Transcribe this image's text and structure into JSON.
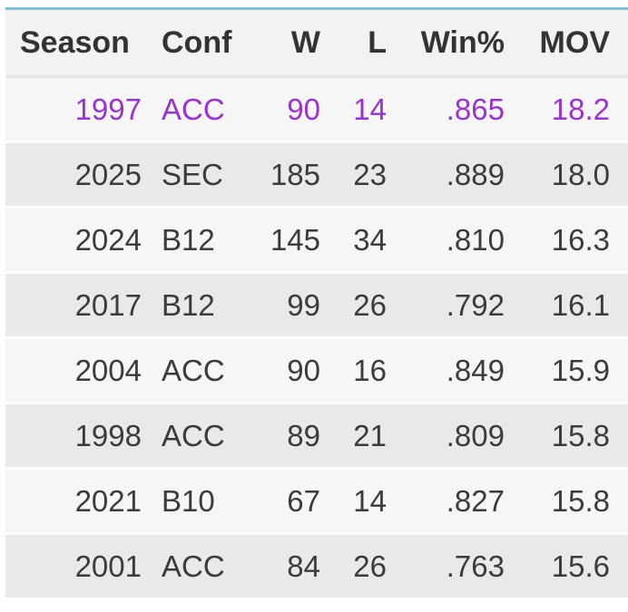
{
  "table": {
    "columns": [
      {
        "key": "season",
        "label": "Season"
      },
      {
        "key": "conf",
        "label": "Conf"
      },
      {
        "key": "w",
        "label": "W"
      },
      {
        "key": "l",
        "label": "L"
      },
      {
        "key": "win_pct",
        "label": "Win%"
      },
      {
        "key": "mov",
        "label": "MOV"
      }
    ],
    "rows": [
      {
        "season": "1997",
        "conf": "ACC",
        "w": "90",
        "l": "14",
        "win_pct": ".865",
        "mov": "18.2",
        "highlighted": true
      },
      {
        "season": "2025",
        "conf": "SEC",
        "w": "185",
        "l": "23",
        "win_pct": ".889",
        "mov": "18.0",
        "highlighted": false
      },
      {
        "season": "2024",
        "conf": "B12",
        "w": "145",
        "l": "34",
        "win_pct": ".810",
        "mov": "16.3",
        "highlighted": false
      },
      {
        "season": "2017",
        "conf": "B12",
        "w": "99",
        "l": "26",
        "win_pct": ".792",
        "mov": "16.1",
        "highlighted": false
      },
      {
        "season": "2004",
        "conf": "ACC",
        "w": "90",
        "l": "16",
        "win_pct": ".849",
        "mov": "15.9",
        "highlighted": false
      },
      {
        "season": "1998",
        "conf": "ACC",
        "w": "89",
        "l": "21",
        "win_pct": ".809",
        "mov": "15.8",
        "highlighted": false
      },
      {
        "season": "2021",
        "conf": "B10",
        "w": "67",
        "l": "14",
        "win_pct": ".827",
        "mov": "15.8",
        "highlighted": false
      },
      {
        "season": "2001",
        "conf": "ACC",
        "w": "84",
        "l": "26",
        "win_pct": ".763",
        "mov": "15.6",
        "highlighted": false
      }
    ]
  },
  "colors": {
    "accent_top_border": "#7cc2dd",
    "header_background": "#f2f2f2",
    "row_light": "#f6f6f6",
    "row_dark": "#e9e9e9",
    "text_dark": "#3b3b3b",
    "header_text": "#333333",
    "highlight_text": "#9a32d2"
  }
}
